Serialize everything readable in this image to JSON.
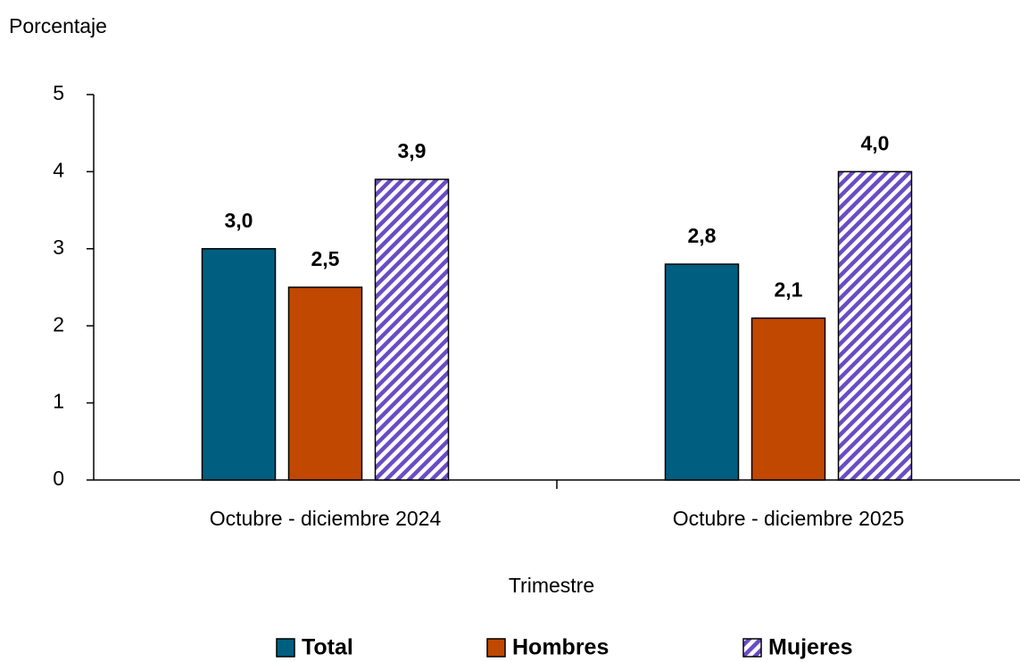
{
  "chart_data": {
    "type": "bar",
    "y_label": "Porcentaje",
    "x_label": "Trimestre",
    "categories": [
      "Octubre - diciembre 2024",
      "Octubre - diciembre 2025"
    ],
    "series": [
      {
        "name": "Total",
        "color": "#005f80",
        "values": [
          3.0,
          2.8
        ],
        "value_labels": [
          "3,0",
          "2,8"
        ]
      },
      {
        "name": "Hombres",
        "color": "#c04800",
        "values": [
          2.5,
          2.1
        ],
        "value_labels": [
          "2,5",
          "2,1"
        ]
      },
      {
        "name": "Mujeres",
        "color": "#6a4cc4",
        "hatch": true,
        "values": [
          3.9,
          4.0
        ],
        "value_labels": [
          "3,9",
          "4,0"
        ]
      }
    ],
    "ylim": [
      0,
      5
    ],
    "yticks": [
      0,
      1,
      2,
      3,
      4,
      5
    ],
    "grid": false,
    "legend": "bottom"
  }
}
